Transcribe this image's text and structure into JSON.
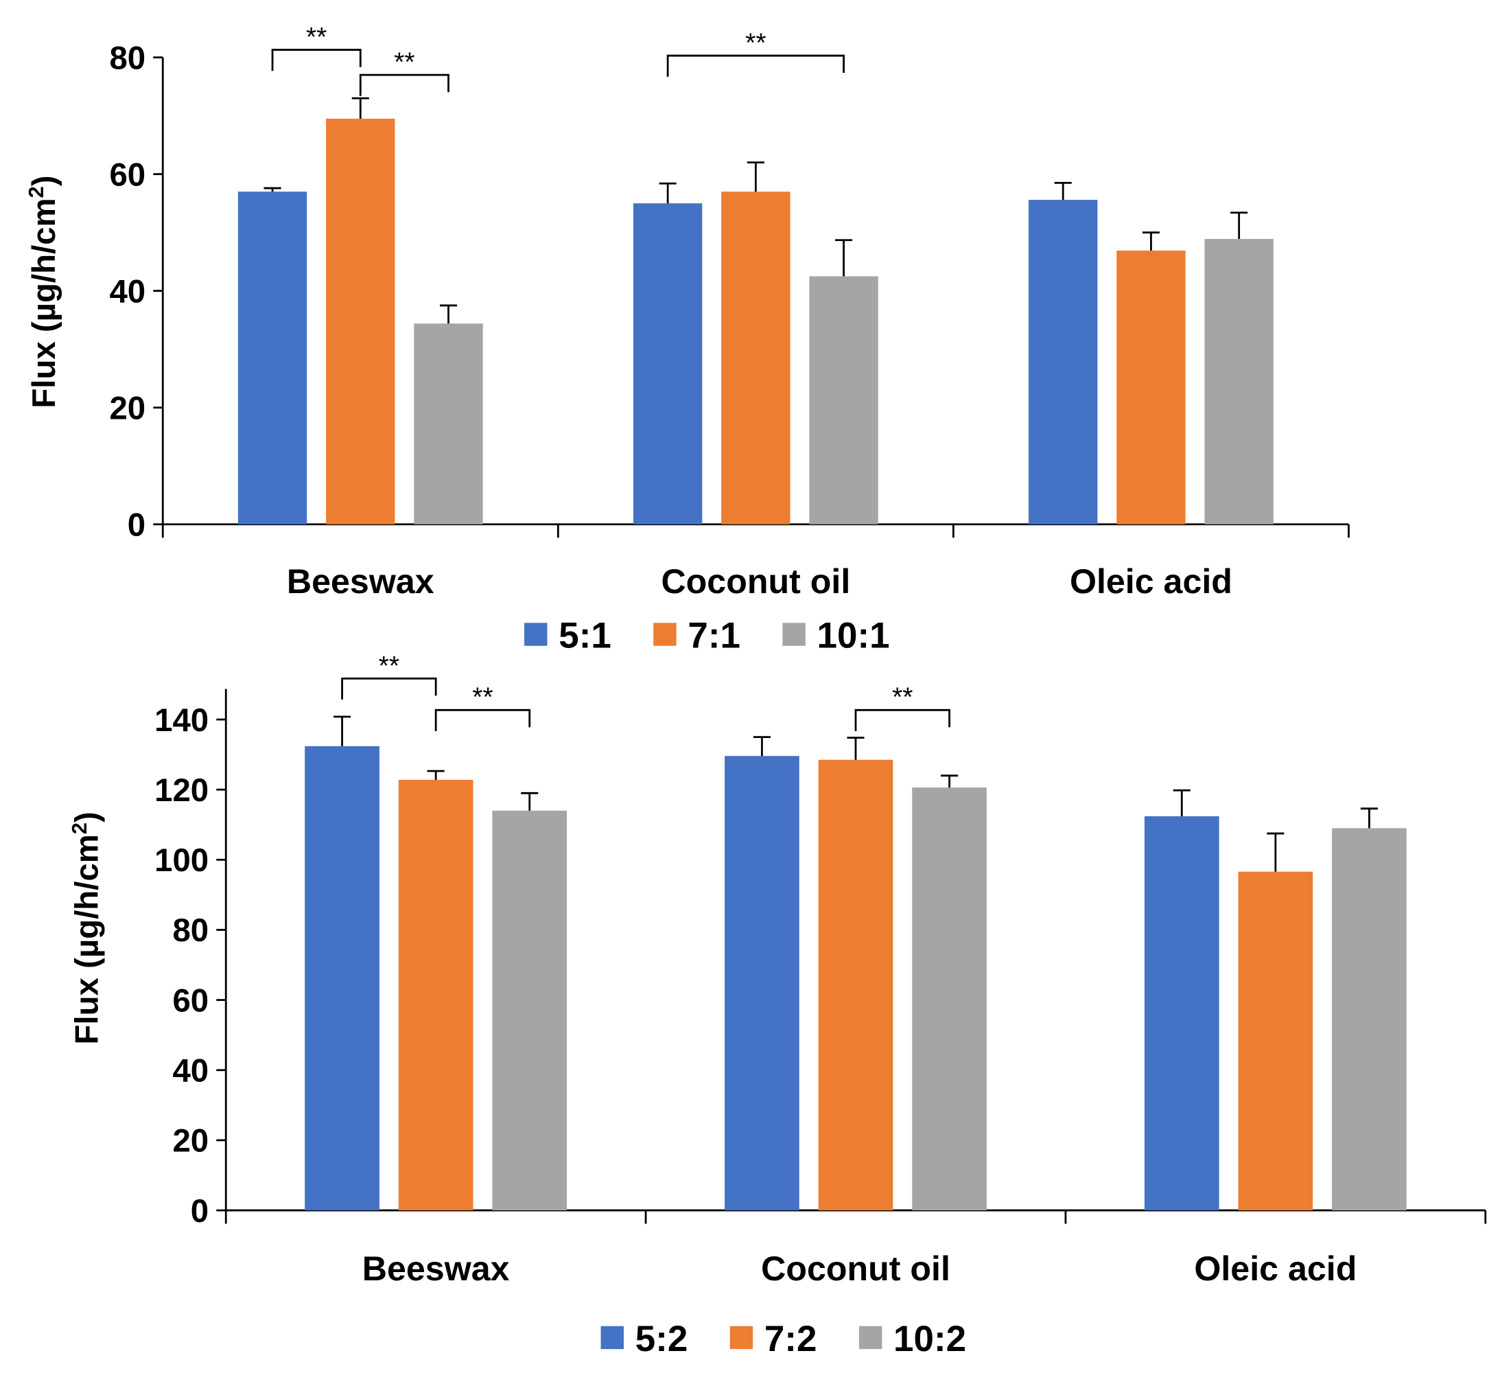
{
  "chart_data": [
    {
      "type": "bar",
      "title": "",
      "xlabel": "",
      "ylabel": "Flux (µg/h/cm²)",
      "ylim": [
        0,
        80
      ],
      "yticks": [
        0,
        20,
        40,
        60,
        80
      ],
      "categories": [
        "Beeswax",
        "Coconut oil",
        "Oleic acid"
      ],
      "series": [
        {
          "name": "5:1",
          "color": "#4472C4",
          "values": [
            57.0,
            55.0,
            55.6
          ],
          "errors": [
            0.6,
            3.4,
            2.9
          ]
        },
        {
          "name": "7:1",
          "color": "#ED7D31",
          "values": [
            69.5,
            57.0,
            46.9
          ],
          "errors": [
            3.5,
            5.0,
            3.1
          ]
        },
        {
          "name": "10:1",
          "color": "#A5A5A5",
          "values": [
            34.4,
            42.5,
            48.9
          ],
          "errors": [
            3.1,
            6.2,
            4.5
          ]
        }
      ],
      "legend_position": "bottom",
      "annotations": [
        {
          "category": 0,
          "from": 0,
          "to": 1,
          "label": "**",
          "level": 81.3
        },
        {
          "category": 0,
          "from": 1,
          "to": 2,
          "label": "**",
          "level": 77.0
        },
        {
          "category": 1,
          "from": 0,
          "to": 2,
          "label": "**",
          "level": 80.3
        }
      ]
    },
    {
      "type": "bar",
      "title": "",
      "xlabel": "",
      "ylabel": "Flux (µg/h/cm²)",
      "ylim": [
        0,
        140
      ],
      "yticks": [
        0,
        20,
        40,
        60,
        80,
        100,
        120,
        140
      ],
      "categories": [
        "Beeswax",
        "Coconut oil",
        "Oleic acid"
      ],
      "series": [
        {
          "name": "5:2",
          "color": "#4472C4",
          "values": [
            132.4,
            129.6,
            112.4
          ],
          "errors": [
            8.4,
            5.4,
            7.4
          ]
        },
        {
          "name": "7:2",
          "color": "#ED7D31",
          "values": [
            122.8,
            128.5,
            96.6
          ],
          "errors": [
            2.5,
            6.3,
            10.9
          ]
        },
        {
          "name": "10:2",
          "color": "#A5A5A5",
          "values": [
            114.0,
            120.6,
            109.0
          ],
          "errors": [
            5.0,
            3.4,
            5.6
          ]
        }
      ],
      "legend_position": "bottom",
      "annotations": [
        {
          "category": 0,
          "from": 0,
          "to": 1,
          "label": "**",
          "level": 151.7
        },
        {
          "category": 0,
          "from": 1,
          "to": 2,
          "label": "**",
          "level": 142.7
        },
        {
          "category": 1,
          "from": 1,
          "to": 2,
          "label": "**",
          "level": 142.7
        }
      ]
    }
  ]
}
